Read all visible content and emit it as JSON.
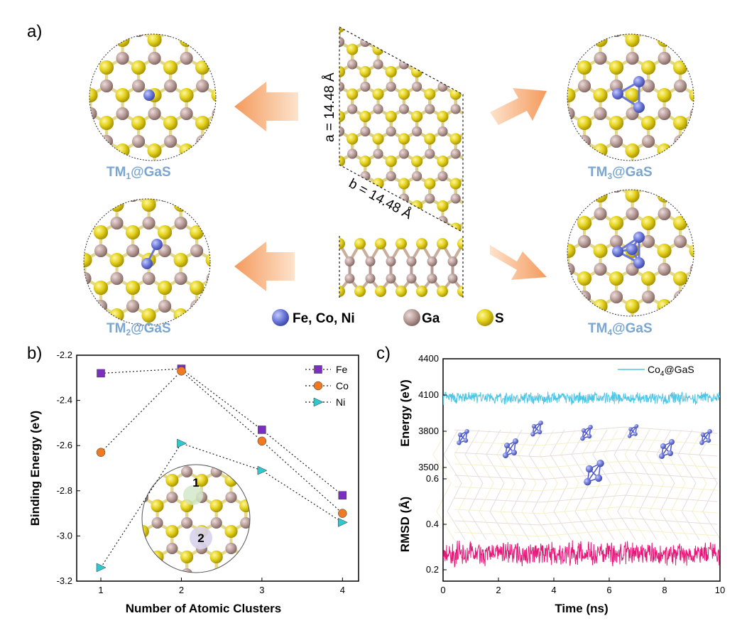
{
  "panel_labels": {
    "a": "a)",
    "b": "b)",
    "c": "c)"
  },
  "panel_a": {
    "lattice_a": "a = 14.48 Å",
    "lattice_b": "b = 14.48 Å",
    "legend": [
      {
        "label": "Fe, Co, Ni",
        "color": "#6c78d8"
      },
      {
        "label": "Ga",
        "color": "#b89c98"
      },
      {
        "label": "S",
        "color": "#e4d21e"
      }
    ],
    "captions": [
      {
        "main": "TM",
        "sub": "1",
        "rest": "@GaS"
      },
      {
        "main": "TM",
        "sub": "2",
        "rest": "@GaS"
      },
      {
        "main": "TM",
        "sub": "3",
        "rest": "@GaS"
      },
      {
        "main": "TM",
        "sub": "4",
        "rest": "@GaS"
      }
    ],
    "colors": {
      "S": "#e4d21e",
      "Ga": "#b89c98",
      "TM": "#6c78d8",
      "arrow": "#f5a062",
      "caption": "#7aa6cf"
    }
  },
  "chart_data": [
    {
      "type": "scatter",
      "xlabel": "Number of Atomic Clusters",
      "ylabel": "Binding Energy (eV)",
      "x": [
        1,
        2,
        3,
        4
      ],
      "xticks": [
        "1",
        "2",
        "3",
        "4"
      ],
      "yticks": [
        "-2.2",
        "-2.4",
        "-2.6",
        "-2.8",
        "-3.0",
        "-3.2"
      ],
      "ylim": [
        -3.2,
        -2.2
      ],
      "xlim": [
        0.7,
        4.2
      ],
      "series": [
        {
          "name": "Fe",
          "values": [
            -2.28,
            -2.26,
            -2.53,
            -2.82
          ],
          "color": "#7a2fbf",
          "marker": "square"
        },
        {
          "name": "Co",
          "values": [
            -2.63,
            -2.27,
            -2.58,
            -2.9
          ],
          "color": "#ef7a22",
          "marker": "circle"
        },
        {
          "name": "Ni",
          "values": [
            -3.14,
            -2.59,
            -2.71,
            -2.94
          ],
          "color": "#2ec9cf",
          "marker": "triangle"
        }
      ],
      "legend_position": "top-right",
      "inset_sites": [
        "1",
        "2"
      ]
    },
    {
      "type": "line",
      "xlabel": "Time (ns)",
      "xticks": [
        "0",
        "2",
        "4",
        "6",
        "8",
        "10"
      ],
      "xlim": [
        0,
        10
      ],
      "energy": {
        "ylabel": "Energy (eV)",
        "yticks": [
          "4400",
          "4100",
          "3800",
          "3500"
        ],
        "ylim": [
          3500,
          4400
        ],
        "series_name": "Co4@GaS",
        "legend_main": "Co",
        "legend_sub": "4",
        "legend_rest": "@GaS",
        "mean": 4075,
        "amplitude": 60,
        "color": "#4fc6e6"
      },
      "rmsd": {
        "ylabel": "RMSD (Å)",
        "yticks": [
          "0.6",
          "0.4",
          "0.2"
        ],
        "ylim": [
          0.15,
          0.65
        ],
        "mean": 0.27,
        "amplitude": 0.06,
        "color": "#e8187a"
      }
    }
  ]
}
